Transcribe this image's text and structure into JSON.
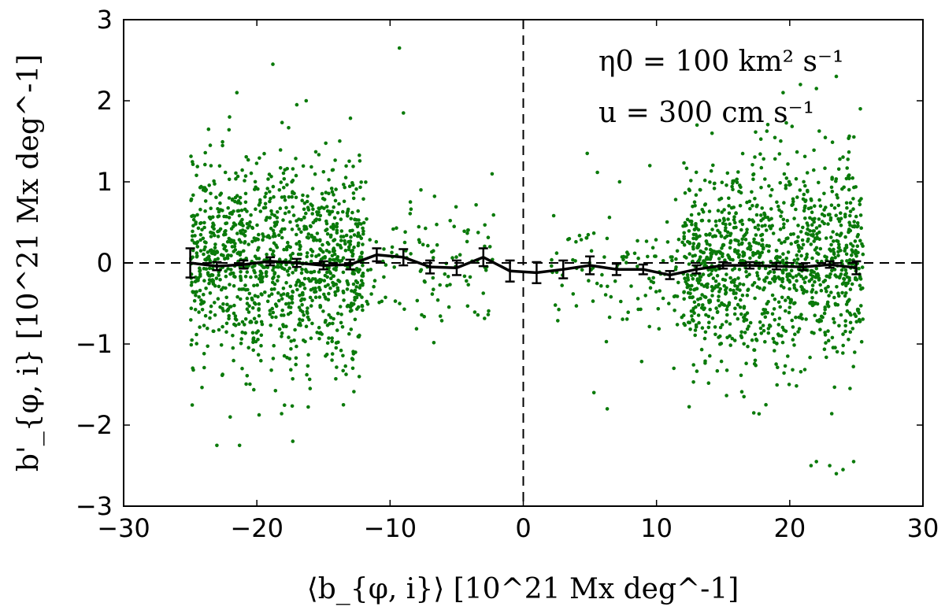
{
  "chart_data": {
    "type": "scatter",
    "title": "",
    "xlabel": "⟨b_{φ, i}⟩ [10^21 Mx deg^-1]",
    "ylabel": "b'_{φ, i} [10^21 Mx deg^-1]",
    "xlim": [
      -30,
      30
    ],
    "ylim": [
      -3,
      3
    ],
    "xticks": [
      -30,
      -20,
      -10,
      0,
      10,
      20,
      30
    ],
    "yticks": [
      -3,
      -2,
      -1,
      0,
      1,
      2,
      3
    ],
    "xtick_labels": [
      "−30",
      "−20",
      "−10",
      "0",
      "10",
      "20",
      "30"
    ],
    "ytick_labels": [
      "−3",
      "−2",
      "−1",
      "0",
      "1",
      "2",
      "3"
    ],
    "grid": false,
    "reference_lines": [
      {
        "orientation": "horizontal",
        "value": 0,
        "style": "dashed"
      },
      {
        "orientation": "vertical",
        "value": 0,
        "style": "dashed"
      }
    ],
    "annotations": [
      "η0 = 100 km² s⁻¹",
      "u = 300 cm s⁻¹"
    ],
    "series": [
      {
        "name": "individual points",
        "kind": "scatter",
        "color": "#0a7a0a",
        "description": "approx. 2500 green dots; dense clusters near |x| = 15–25, spread roughly ±1.5",
        "clusters": [
          {
            "x_range": [
              -25,
              -12
            ],
            "y_sigma": 0.62,
            "count": 1150
          },
          {
            "x_range": [
              12,
              25.5
            ],
            "y_sigma": 0.62,
            "count": 1150
          },
          {
            "x_range": [
              -12,
              -2
            ],
            "y_sigma": 0.42,
            "count": 110
          },
          {
            "x_range": [
              2,
              12
            ],
            "y_sigma": 0.45,
            "count": 110
          }
        ],
        "outliers": [
          [
            -9.3,
            2.65
          ],
          [
            -18.8,
            2.45
          ],
          [
            -21.5,
            2.1
          ],
          [
            -17,
            1.95
          ],
          [
            -16.3,
            2.0
          ],
          [
            -9,
            1.85
          ],
          [
            -23,
            -2.25
          ],
          [
            -21.3,
            -2.25
          ],
          [
            -17.3,
            -2.2
          ],
          [
            -22,
            -1.9
          ],
          [
            -13.5,
            -1.75
          ],
          [
            -16,
            -1.55
          ],
          [
            22,
            -2.45
          ],
          [
            23,
            -2.5
          ],
          [
            24,
            -2.55
          ],
          [
            23.5,
            -2.6
          ],
          [
            24.8,
            -2.45
          ],
          [
            21.6,
            -2.5
          ],
          [
            17.3,
            -1.85
          ],
          [
            6.3,
            -1.8
          ],
          [
            5.3,
            -1.6
          ],
          [
            19.5,
            2.1
          ],
          [
            20.8,
            2.2
          ],
          [
            23.5,
            2.3
          ],
          [
            22,
            2.15
          ],
          [
            25.3,
            1.9
          ],
          [
            4.8,
            1.35
          ],
          [
            11.3,
            -1.3
          ],
          [
            9.5,
            1.2
          ]
        ]
      },
      {
        "name": "binned mean",
        "kind": "line_with_errorbars",
        "color": "#000000",
        "x": [
          -25,
          -23,
          -21,
          -19,
          -17,
          -15,
          -13,
          -11,
          -9,
          -7,
          -5,
          -3,
          -1,
          1,
          3,
          5,
          7,
          9,
          11,
          13,
          15,
          17,
          19,
          21,
          23,
          25
        ],
        "y": [
          0.0,
          -0.04,
          -0.02,
          0.02,
          0.0,
          -0.03,
          -0.02,
          0.1,
          0.07,
          -0.05,
          -0.06,
          0.07,
          -0.1,
          -0.12,
          -0.08,
          -0.03,
          -0.08,
          -0.08,
          -0.15,
          -0.08,
          -0.03,
          -0.03,
          -0.04,
          -0.05,
          -0.02,
          -0.06
        ],
        "err": [
          0.18,
          0.05,
          0.05,
          0.05,
          0.05,
          0.05,
          0.06,
          0.08,
          0.1,
          0.08,
          0.09,
          0.11,
          0.13,
          0.13,
          0.11,
          0.11,
          0.07,
          0.06,
          0.05,
          0.05,
          0.04,
          0.04,
          0.04,
          0.04,
          0.04,
          0.08
        ]
      }
    ]
  }
}
